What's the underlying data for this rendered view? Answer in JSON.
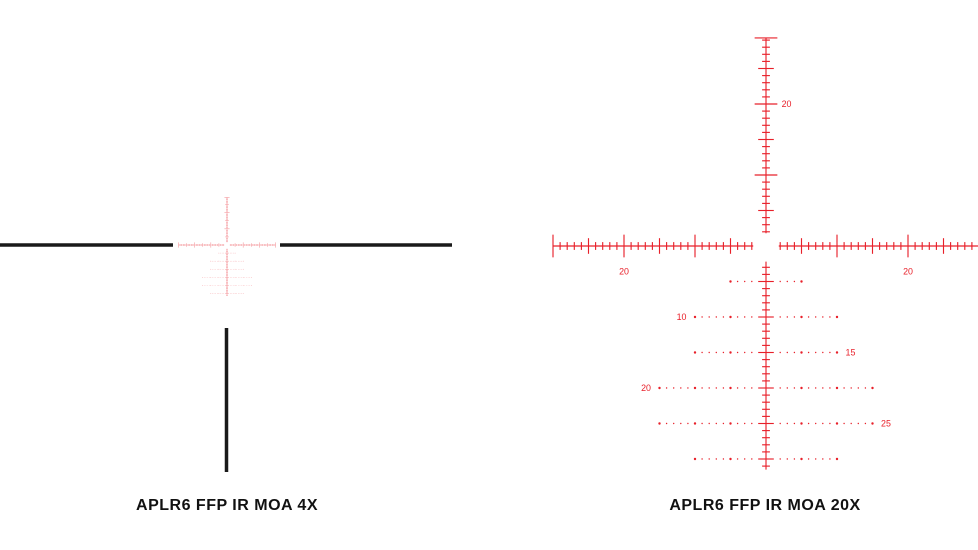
{
  "reticle_color": "#e8202a",
  "post_color": "#1a1a1a",
  "reticles": [
    {
      "caption": "APLR6 FFP IR MOA 4X",
      "magnification": 4
    },
    {
      "caption": "APLR6 FFP IR MOA 20X",
      "magnification": 20,
      "horizontal_labels": [
        {
          "text": "20",
          "moa": -20
        },
        {
          "text": "20",
          "moa": 20
        }
      ],
      "vertical_labels": [
        {
          "text": "20",
          "moa": -20
        }
      ],
      "holdover_rows": [
        {
          "moa": 5,
          "half_width_moa": 5,
          "label": ""
        },
        {
          "moa": 10,
          "half_width_moa": 10,
          "label": "10",
          "label_side": "left"
        },
        {
          "moa": 15,
          "half_width_moa": 10,
          "label": "15",
          "label_side": "right"
        },
        {
          "moa": 20,
          "half_width_moa": 15,
          "label": "20",
          "label_side": "left"
        },
        {
          "moa": 25,
          "half_width_moa": 15,
          "label": "25",
          "label_side": "right"
        },
        {
          "moa": 30,
          "half_width_moa": 10,
          "label": ""
        }
      ]
    }
  ]
}
